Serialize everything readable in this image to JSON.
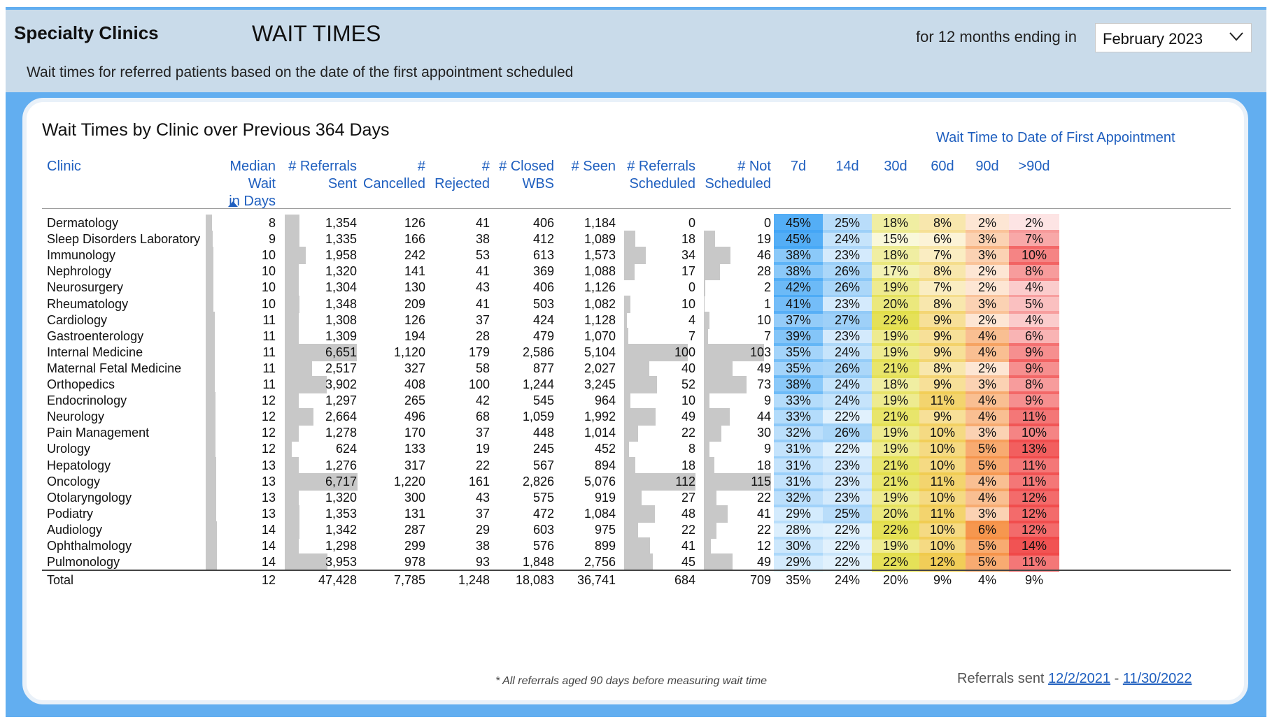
{
  "header": {
    "brand": "Specialty Clinics",
    "title": "WAIT TIMES",
    "period_label": "for 12 months ending in",
    "month_selected": "February 2023",
    "subtitle": "Wait times for referred patients based on the date of the first appointment scheduled"
  },
  "card": {
    "title": "Wait Times by Clinic over Previous 364 Days",
    "band_title": "Wait Time to Date of First Appointment",
    "columns": {
      "clinic": "Clinic",
      "median_1": "Median Wait",
      "median_2": "in Days",
      "sent_1": "# Referrals",
      "sent_2": "Sent",
      "cancel_1": "#",
      "cancel_2": "Cancelled",
      "reject_1": "#",
      "reject_2": "Rejected",
      "closed_1": "# Closed",
      "closed_2": "WBS",
      "seen": "# Seen",
      "sched_1": "# Referrals",
      "sched_2": "Scheduled",
      "notsched_1": "# Not",
      "notsched_2": "Scheduled",
      "b7": "7d",
      "b14": "14d",
      "b30": "30d",
      "b60": "60d",
      "b90": "90d",
      "bgt90": ">90d"
    },
    "rows": [
      {
        "clinic": "Dermatology",
        "median": "8",
        "sent": "1,354",
        "cancelled": "126",
        "rejected": "41",
        "closed": "406",
        "seen": "1,184",
        "scheduled": "0",
        "not_scheduled": "0",
        "p7": "45%",
        "p14": "25%",
        "p30": "18%",
        "p60": "8%",
        "p90": "2%",
        "pgt90": "2%"
      },
      {
        "clinic": "Sleep Disorders Laboratory",
        "median": "9",
        "sent": "1,335",
        "cancelled": "166",
        "rejected": "38",
        "closed": "412",
        "seen": "1,089",
        "scheduled": "18",
        "not_scheduled": "19",
        "p7": "45%",
        "p14": "24%",
        "p30": "15%",
        "p60": "6%",
        "p90": "3%",
        "pgt90": "7%"
      },
      {
        "clinic": "Immunology",
        "median": "10",
        "sent": "1,958",
        "cancelled": "242",
        "rejected": "53",
        "closed": "613",
        "seen": "1,573",
        "scheduled": "34",
        "not_scheduled": "46",
        "p7": "38%",
        "p14": "23%",
        "p30": "18%",
        "p60": "7%",
        "p90": "3%",
        "pgt90": "10%"
      },
      {
        "clinic": "Nephrology",
        "median": "10",
        "sent": "1,320",
        "cancelled": "141",
        "rejected": "41",
        "closed": "369",
        "seen": "1,088",
        "scheduled": "17",
        "not_scheduled": "28",
        "p7": "38%",
        "p14": "26%",
        "p30": "17%",
        "p60": "8%",
        "p90": "2%",
        "pgt90": "8%"
      },
      {
        "clinic": "Neurosurgery",
        "median": "10",
        "sent": "1,304",
        "cancelled": "130",
        "rejected": "43",
        "closed": "406",
        "seen": "1,126",
        "scheduled": "0",
        "not_scheduled": "2",
        "p7": "42%",
        "p14": "26%",
        "p30": "19%",
        "p60": "7%",
        "p90": "2%",
        "pgt90": "4%"
      },
      {
        "clinic": "Rheumatology",
        "median": "10",
        "sent": "1,348",
        "cancelled": "209",
        "rejected": "41",
        "closed": "503",
        "seen": "1,082",
        "scheduled": "10",
        "not_scheduled": "1",
        "p7": "41%",
        "p14": "23%",
        "p30": "20%",
        "p60": "8%",
        "p90": "3%",
        "pgt90": "5%"
      },
      {
        "clinic": "Cardiology",
        "median": "11",
        "sent": "1,308",
        "cancelled": "126",
        "rejected": "37",
        "closed": "424",
        "seen": "1,128",
        "scheduled": "4",
        "not_scheduled": "10",
        "p7": "37%",
        "p14": "27%",
        "p30": "22%",
        "p60": "9%",
        "p90": "2%",
        "pgt90": "4%"
      },
      {
        "clinic": "Gastroenterology",
        "median": "11",
        "sent": "1,309",
        "cancelled": "194",
        "rejected": "28",
        "closed": "479",
        "seen": "1,070",
        "scheduled": "7",
        "not_scheduled": "7",
        "p7": "39%",
        "p14": "23%",
        "p30": "19%",
        "p60": "9%",
        "p90": "4%",
        "pgt90": "6%"
      },
      {
        "clinic": "Internal Medicine",
        "median": "11",
        "sent": "6,651",
        "cancelled": "1,120",
        "rejected": "179",
        "closed": "2,586",
        "seen": "5,104",
        "scheduled": "100",
        "not_scheduled": "103",
        "p7": "35%",
        "p14": "24%",
        "p30": "19%",
        "p60": "9%",
        "p90": "4%",
        "pgt90": "9%"
      },
      {
        "clinic": "Maternal Fetal Medicine",
        "median": "11",
        "sent": "2,517",
        "cancelled": "327",
        "rejected": "58",
        "closed": "877",
        "seen": "2,027",
        "scheduled": "40",
        "not_scheduled": "49",
        "p7": "35%",
        "p14": "26%",
        "p30": "21%",
        "p60": "8%",
        "p90": "2%",
        "pgt90": "9%"
      },
      {
        "clinic": "Orthopedics",
        "median": "11",
        "sent": "3,902",
        "cancelled": "408",
        "rejected": "100",
        "closed": "1,244",
        "seen": "3,245",
        "scheduled": "52",
        "not_scheduled": "73",
        "p7": "38%",
        "p14": "24%",
        "p30": "18%",
        "p60": "9%",
        "p90": "3%",
        "pgt90": "8%"
      },
      {
        "clinic": "Endocrinology",
        "median": "12",
        "sent": "1,297",
        "cancelled": "265",
        "rejected": "42",
        "closed": "545",
        "seen": "964",
        "scheduled": "10",
        "not_scheduled": "9",
        "p7": "33%",
        "p14": "24%",
        "p30": "19%",
        "p60": "11%",
        "p90": "4%",
        "pgt90": "9%"
      },
      {
        "clinic": "Neurology",
        "median": "12",
        "sent": "2,664",
        "cancelled": "496",
        "rejected": "68",
        "closed": "1,059",
        "seen": "1,992",
        "scheduled": "49",
        "not_scheduled": "44",
        "p7": "33%",
        "p14": "22%",
        "p30": "21%",
        "p60": "9%",
        "p90": "4%",
        "pgt90": "11%"
      },
      {
        "clinic": "Pain Management",
        "median": "12",
        "sent": "1,278",
        "cancelled": "170",
        "rejected": "37",
        "closed": "448",
        "seen": "1,014",
        "scheduled": "22",
        "not_scheduled": "30",
        "p7": "32%",
        "p14": "26%",
        "p30": "19%",
        "p60": "10%",
        "p90": "3%",
        "pgt90": "10%"
      },
      {
        "clinic": "Urology",
        "median": "12",
        "sent": "624",
        "cancelled": "133",
        "rejected": "19",
        "closed": "245",
        "seen": "452",
        "scheduled": "8",
        "not_scheduled": "9",
        "p7": "31%",
        "p14": "22%",
        "p30": "19%",
        "p60": "10%",
        "p90": "5%",
        "pgt90": "13%"
      },
      {
        "clinic": "Hepatology",
        "median": "13",
        "sent": "1,276",
        "cancelled": "317",
        "rejected": "22",
        "closed": "567",
        "seen": "894",
        "scheduled": "18",
        "not_scheduled": "18",
        "p7": "31%",
        "p14": "23%",
        "p30": "21%",
        "p60": "10%",
        "p90": "5%",
        "pgt90": "11%"
      },
      {
        "clinic": "Oncology",
        "median": "13",
        "sent": "6,717",
        "cancelled": "1,220",
        "rejected": "161",
        "closed": "2,826",
        "seen": "5,076",
        "scheduled": "112",
        "not_scheduled": "115",
        "p7": "31%",
        "p14": "23%",
        "p30": "21%",
        "p60": "11%",
        "p90": "4%",
        "pgt90": "11%"
      },
      {
        "clinic": "Otolaryngology",
        "median": "13",
        "sent": "1,320",
        "cancelled": "300",
        "rejected": "43",
        "closed": "575",
        "seen": "919",
        "scheduled": "27",
        "not_scheduled": "22",
        "p7": "32%",
        "p14": "23%",
        "p30": "19%",
        "p60": "10%",
        "p90": "4%",
        "pgt90": "12%"
      },
      {
        "clinic": "Podiatry",
        "median": "13",
        "sent": "1,353",
        "cancelled": "131",
        "rejected": "37",
        "closed": "472",
        "seen": "1,084",
        "scheduled": "48",
        "not_scheduled": "41",
        "p7": "29%",
        "p14": "25%",
        "p30": "20%",
        "p60": "11%",
        "p90": "3%",
        "pgt90": "12%"
      },
      {
        "clinic": "Audiology",
        "median": "14",
        "sent": "1,342",
        "cancelled": "287",
        "rejected": "29",
        "closed": "603",
        "seen": "975",
        "scheduled": "22",
        "not_scheduled": "22",
        "p7": "28%",
        "p14": "22%",
        "p30": "22%",
        "p60": "10%",
        "p90": "6%",
        "pgt90": "12%"
      },
      {
        "clinic": "Ophthalmology",
        "median": "14",
        "sent": "1,298",
        "cancelled": "299",
        "rejected": "38",
        "closed": "576",
        "seen": "899",
        "scheduled": "41",
        "not_scheduled": "12",
        "p7": "30%",
        "p14": "22%",
        "p30": "19%",
        "p60": "10%",
        "p90": "5%",
        "pgt90": "14%"
      },
      {
        "clinic": "Pulmonology",
        "median": "14",
        "sent": "3,953",
        "cancelled": "978",
        "rejected": "93",
        "closed": "1,848",
        "seen": "2,756",
        "scheduled": "45",
        "not_scheduled": "49",
        "p7": "29%",
        "p14": "22%",
        "p30": "22%",
        "p60": "12%",
        "p90": "5%",
        "pgt90": "11%"
      }
    ],
    "total": {
      "clinic": "Total",
      "median": "12",
      "sent": "47,428",
      "cancelled": "7,785",
      "rejected": "1,248",
      "closed": "18,083",
      "seen": "36,741",
      "scheduled": "684",
      "not_scheduled": "709",
      "p7": "35%",
      "p14": "24%",
      "p30": "20%",
      "p60": "9%",
      "p90": "4%",
      "pgt90": "9%"
    },
    "footnote": "* All referrals aged 90 days before measuring wait time",
    "range_prefix": "Referrals sent",
    "range_start": "12/2/2021",
    "range_sep": "-",
    "range_end": "11/30/2022"
  },
  "colors": {
    "frame": "#62aef0",
    "header_bg": "#c9dbea",
    "header_text": "#1f5fbf",
    "bar": "#c8c8c8",
    "scale_blue": "#4fb3f6",
    "scale_yellow": "#e7e05a",
    "scale_orange": "#f59a45",
    "scale_red": "#f55a5a"
  },
  "icons": {
    "month_dropdown": "chevron-down-icon",
    "sort_indicator": "sort-ascending-icon"
  }
}
